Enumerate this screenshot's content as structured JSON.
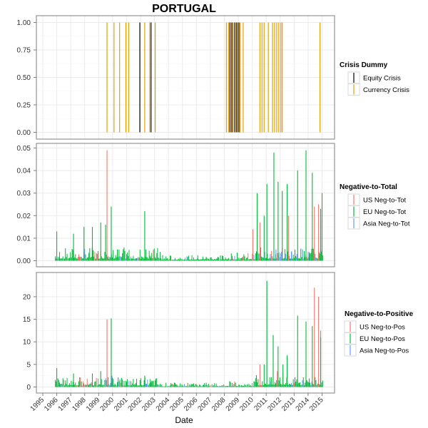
{
  "title": "PORTUGAL",
  "xlabel": "Date",
  "colors": {
    "equity": "#000000",
    "currency": "#E69F00",
    "us": "#F8766D",
    "eu": "#00BA38",
    "asia": "#619CFF",
    "grid": "#ebebeb",
    "panel_border": "#7f7f7f"
  },
  "chart_data": [
    {
      "type": "bar",
      "title": "PORTUGAL",
      "xlabel": "Date",
      "ylabel": "",
      "x_ticks": [
        "1995",
        "1996",
        "1997",
        "1998",
        "1999",
        "2000",
        "2001",
        "2002",
        "2003",
        "2004",
        "2005",
        "2006",
        "2007",
        "2008",
        "2009",
        "2010",
        "2011",
        "2012",
        "2013",
        "2014",
        "2015"
      ],
      "xlim": [
        1995,
        2015
      ],
      "ylim": [
        0,
        1
      ],
      "y_ticks": [
        "0.00",
        "0.25",
        "0.50",
        "0.75",
        "1.00"
      ],
      "grid": true,
      "legend": {
        "title": "Crisis Dummy",
        "entries": [
          "Equity Crisis",
          "Currency Crisis"
        ],
        "position": "right"
      },
      "series": [
        {
          "name": "Equity Crisis",
          "dates": [
            2001.95,
            2002.75,
            2008.4,
            2008.55,
            2008.75,
            2008.9,
            2009.05
          ]
        },
        {
          "name": "Currency Crisis",
          "dates": [
            1999.6,
            2000.1,
            2000.5,
            2000.95,
            2001.15,
            2002.3,
            2002.65,
            2003.05,
            2008.15,
            2008.3,
            2008.5,
            2008.65,
            2008.85,
            2009.0,
            2009.15,
            2009.35,
            2010.55,
            2010.7,
            2010.85,
            2011.15,
            2011.45,
            2011.6,
            2011.75,
            2011.9,
            2012.05,
            2012.15,
            2014.85
          ]
        }
      ]
    },
    {
      "type": "bar",
      "xlim": [
        1995,
        2015
      ],
      "ylim": [
        0,
        0.05
      ],
      "y_ticks": [
        "0.00",
        "0.01",
        "0.02",
        "0.03",
        "0.04",
        "0.05"
      ],
      "grid": true,
      "legend": {
        "title": "Negative-to-Total",
        "entries": [
          "US Neg-to-Tot",
          "EU Neg-to-Tot",
          "Asia Neg-to-Tot"
        ],
        "position": "right"
      },
      "series": [
        {
          "name": "US Neg-to-Tot",
          "x": [
            1999.6,
            2010.05,
            2010.55,
            2012.6,
            2014.45,
            2014.75,
            2014.9
          ],
          "values": [
            0.049,
            0.014,
            0.017,
            0.02,
            0.024,
            0.025,
            0.018
          ]
        },
        {
          "name": "EU Neg-to-Tot",
          "x": [
            1996.0,
            1997.2,
            1997.95,
            1998.55,
            1999.15,
            1999.5,
            1999.9,
            2002.3,
            2010.35,
            2010.85,
            2011.05,
            2011.55,
            2011.85,
            2012.15,
            2012.5,
            2013.25,
            2013.85,
            2014.3,
            2014.9,
            2015.0
          ],
          "values": [
            0.013,
            0.012,
            0.015,
            0.015,
            0.017,
            0.016,
            0.024,
            0.022,
            0.03,
            0.02,
            0.034,
            0.048,
            0.035,
            0.031,
            0.034,
            0.04,
            0.049,
            0.039,
            0.023,
            0.03
          ]
        },
        {
          "name": "Asia Neg-to-Tot",
          "x": [
            2010.9,
            2011.3,
            2011.7,
            2012.1,
            2012.4,
            2012.8,
            2013.2,
            2013.6,
            2014.0,
            2014.5
          ],
          "values": [
            0.004,
            0.003,
            0.005,
            0.004,
            0.003,
            0.004,
            0.003,
            0.005,
            0.004,
            0.003
          ]
        }
      ]
    },
    {
      "type": "bar",
      "xlim": [
        1995,
        2015
      ],
      "ylim": [
        0,
        25
      ],
      "y_ticks": [
        "0",
        "5",
        "10",
        "15",
        "20"
      ],
      "grid": true,
      "legend": {
        "title": "Negative-to-Positive",
        "entries": [
          "US Neg-to-Pos",
          "EU Neg-to-Pos",
          "Asia Neg-to-Pos"
        ],
        "position": "right"
      },
      "series": [
        {
          "name": "US Neg-to-Pos",
          "x": [
            1999.6,
            2010.55,
            2011.8,
            2012.2,
            2014.45,
            2014.75,
            2014.9
          ],
          "values": [
            15,
            5,
            3.5,
            3.2,
            22,
            20,
            12.5
          ]
        },
        {
          "name": "EU Neg-to-Pos",
          "x": [
            1996.0,
            1997.2,
            1998.55,
            1999.15,
            1999.9,
            2002.3,
            2010.3,
            2010.85,
            2011.05,
            2011.5,
            2011.85,
            2012.2,
            2012.5,
            2013.25,
            2013.85,
            2014.3,
            2014.9
          ],
          "values": [
            4.2,
            3.0,
            3.0,
            3.5,
            15.2,
            2.5,
            2.6,
            5,
            23.5,
            11.5,
            9,
            5,
            7,
            15.8,
            14.5,
            13.5,
            11
          ]
        },
        {
          "name": "Asia Neg-to-Pos",
          "x": [
            1999.95,
            2011.3,
            2012.8,
            2013.6,
            2014.5
          ],
          "values": [
            2.5,
            1.2,
            0.9,
            1.5,
            1.0
          ]
        }
      ]
    }
  ]
}
